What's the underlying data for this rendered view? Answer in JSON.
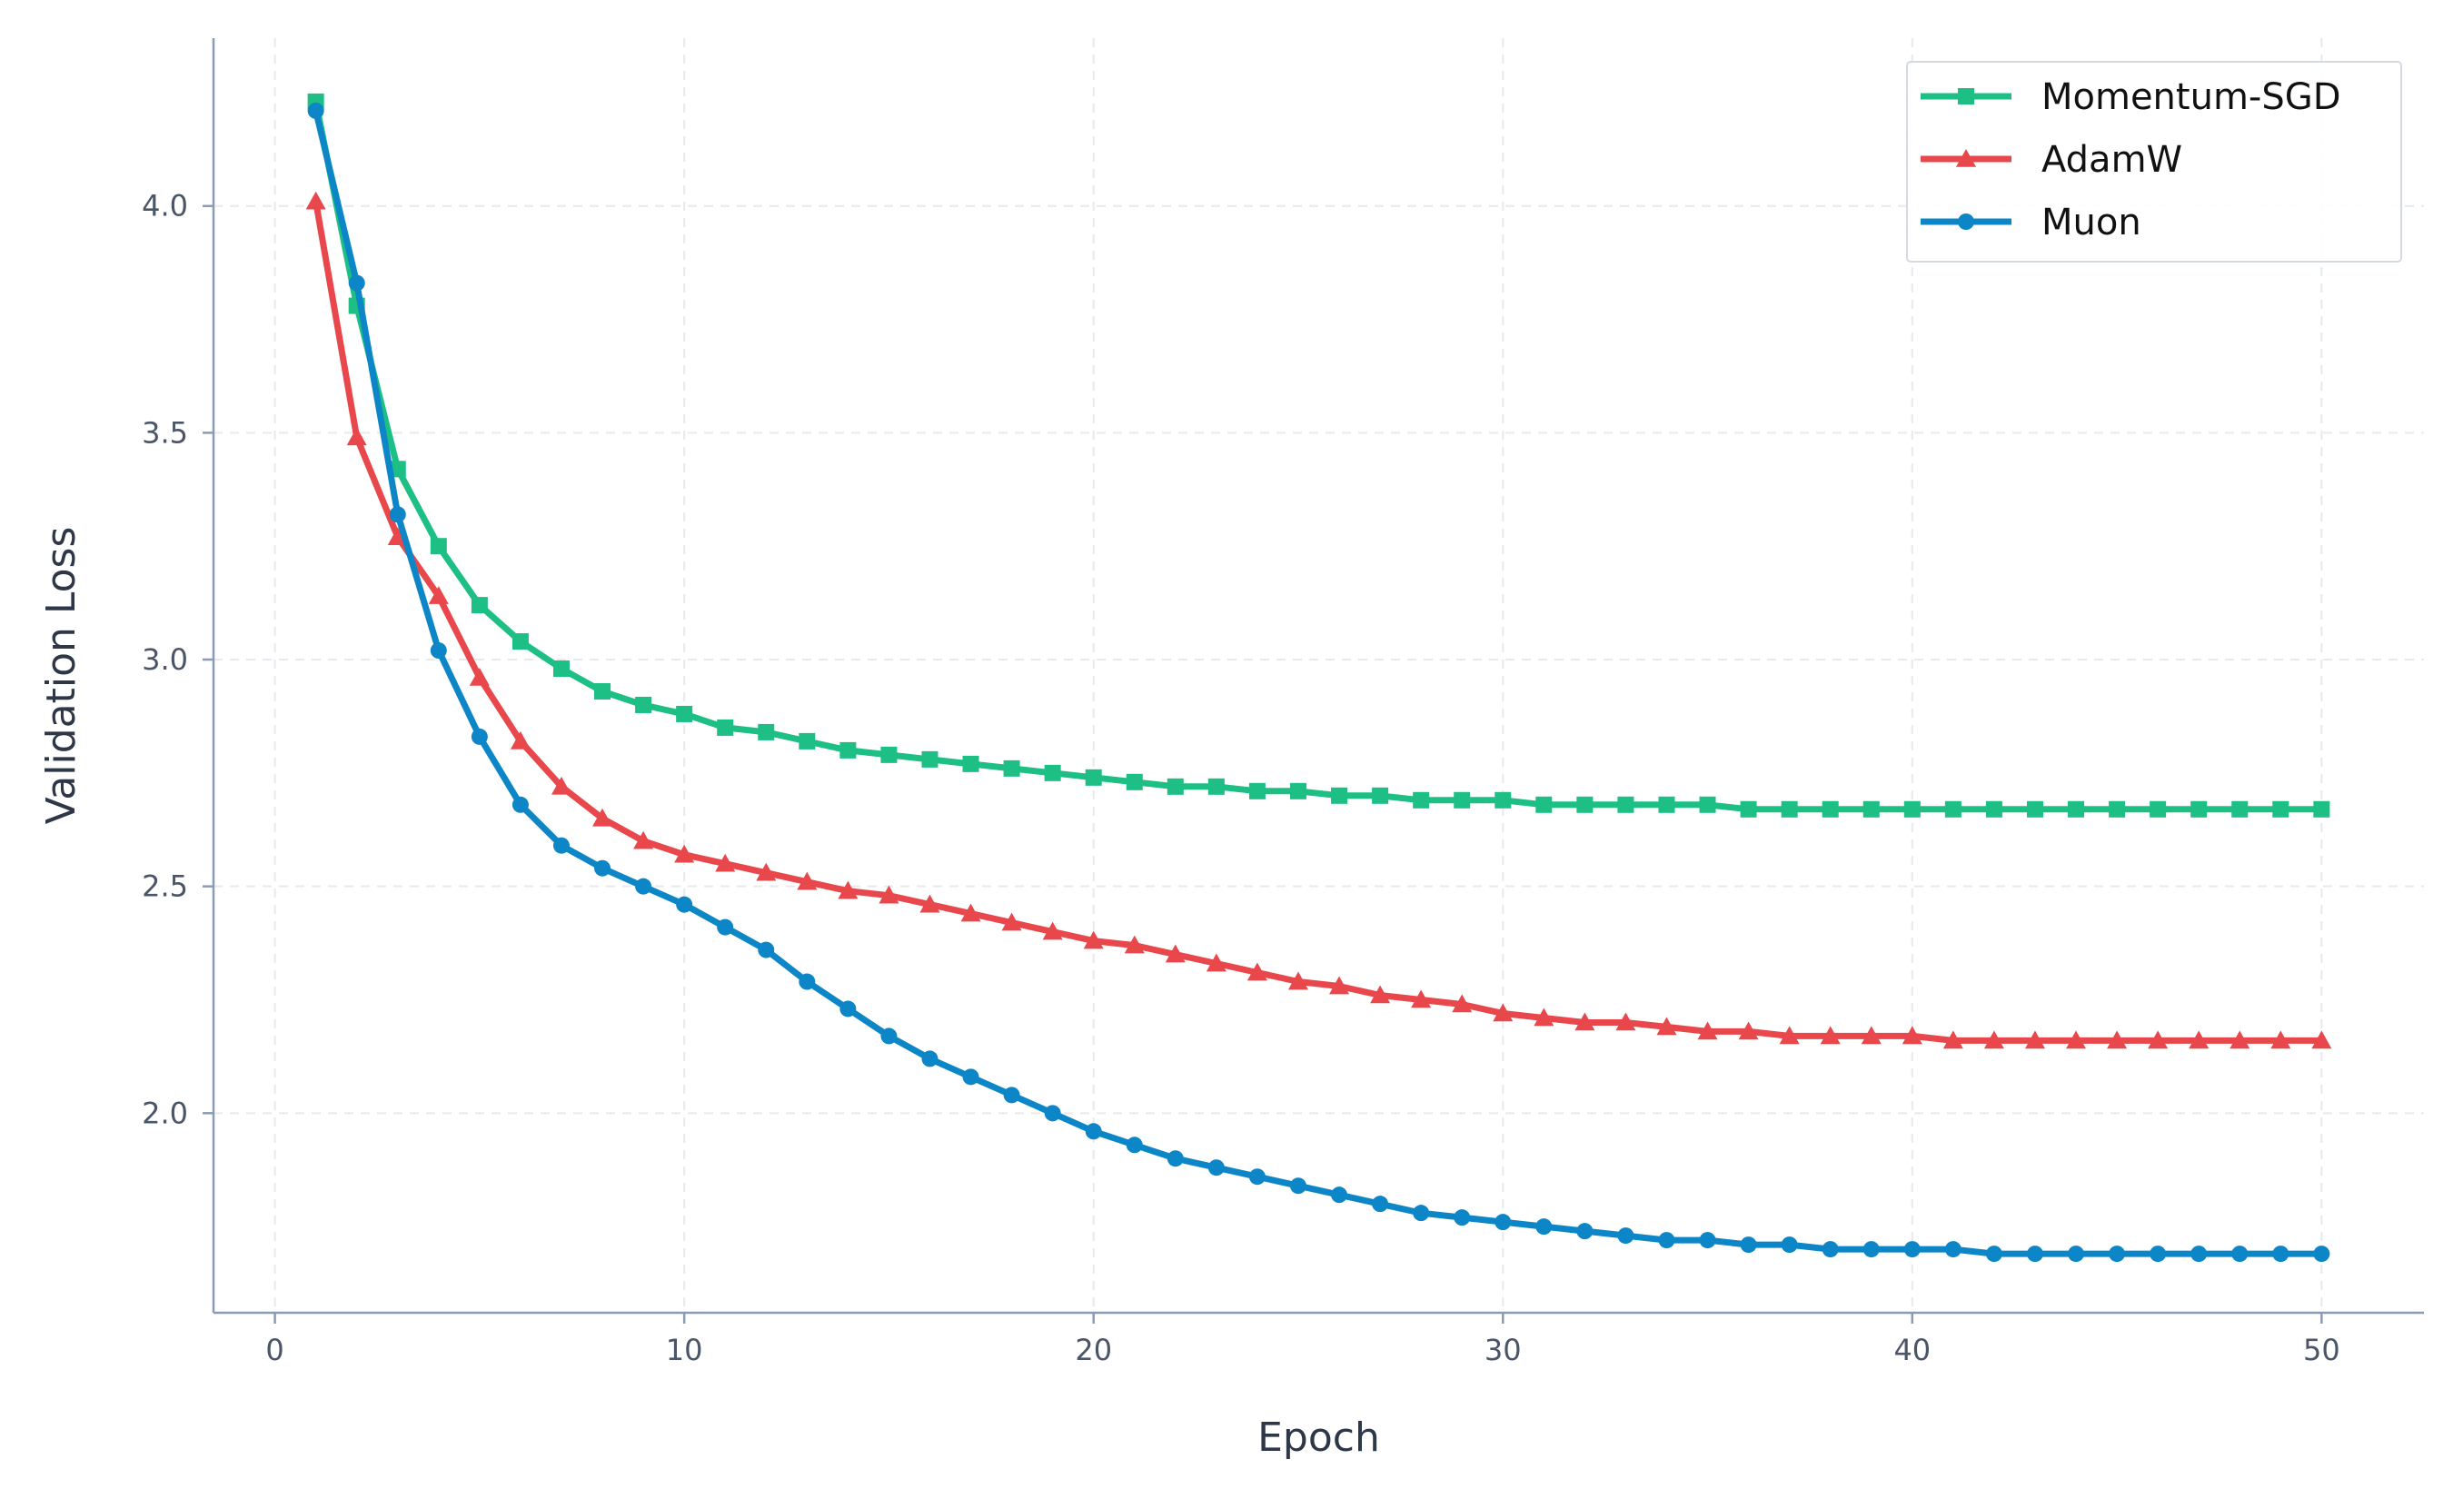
{
  "chart_data": {
    "type": "line",
    "title": "",
    "xlabel": "Epoch",
    "ylabel": "Validation Loss",
    "xlim": [
      -1.5,
      52.5
    ],
    "ylim": [
      1.56,
      4.37
    ],
    "xticks": [
      0,
      10,
      20,
      30,
      40,
      50
    ],
    "xtick_labels": [
      "0",
      "10",
      "20",
      "30",
      "40",
      "50"
    ],
    "yticks": [
      2.0,
      2.5,
      3.0,
      3.5,
      4.0
    ],
    "ytick_labels": [
      "2.0",
      "2.5",
      "3.0",
      "3.5",
      "4.0"
    ],
    "grid": true,
    "legend_position": "top-right",
    "x": [
      1,
      2,
      3,
      4,
      5,
      6,
      7,
      8,
      9,
      10,
      11,
      12,
      13,
      14,
      15,
      16,
      17,
      18,
      19,
      20,
      21,
      22,
      23,
      24,
      25,
      26,
      27,
      28,
      29,
      30,
      31,
      32,
      33,
      34,
      35,
      36,
      37,
      38,
      39,
      40,
      41,
      42,
      43,
      44,
      45,
      46,
      47,
      48,
      49,
      50
    ],
    "series": [
      {
        "name": "Momentum-SGD",
        "color": "#1dbf85",
        "marker": "square",
        "values": [
          4.23,
          3.78,
          3.42,
          3.25,
          3.12,
          3.04,
          2.98,
          2.93,
          2.9,
          2.88,
          2.85,
          2.84,
          2.82,
          2.8,
          2.79,
          2.78,
          2.77,
          2.76,
          2.75,
          2.74,
          2.73,
          2.72,
          2.72,
          2.71,
          2.71,
          2.7,
          2.7,
          2.69,
          2.69,
          2.69,
          2.68,
          2.68,
          2.68,
          2.68,
          2.68,
          2.67,
          2.67,
          2.67,
          2.67,
          2.67,
          2.67,
          2.67,
          2.67,
          2.67,
          2.67,
          2.67,
          2.67,
          2.67,
          2.67,
          2.67
        ]
      },
      {
        "name": "AdamW",
        "color": "#e8474c",
        "marker": "triangle",
        "values": [
          4.01,
          3.49,
          3.27,
          3.14,
          2.96,
          2.82,
          2.72,
          2.65,
          2.6,
          2.57,
          2.55,
          2.53,
          2.51,
          2.49,
          2.48,
          2.46,
          2.44,
          2.42,
          2.4,
          2.38,
          2.37,
          2.35,
          2.33,
          2.31,
          2.29,
          2.28,
          2.26,
          2.25,
          2.24,
          2.22,
          2.21,
          2.2,
          2.2,
          2.19,
          2.18,
          2.18,
          2.17,
          2.17,
          2.17,
          2.17,
          2.16,
          2.16,
          2.16,
          2.16,
          2.16,
          2.16,
          2.16,
          2.16,
          2.16,
          2.16
        ]
      },
      {
        "name": "Muon",
        "color": "#0c86c6",
        "marker": "circle",
        "values": [
          4.21,
          3.83,
          3.32,
          3.02,
          2.83,
          2.68,
          2.59,
          2.54,
          2.5,
          2.46,
          2.41,
          2.36,
          2.29,
          2.23,
          2.17,
          2.12,
          2.08,
          2.04,
          2.0,
          1.96,
          1.93,
          1.9,
          1.88,
          1.86,
          1.84,
          1.82,
          1.8,
          1.78,
          1.77,
          1.76,
          1.75,
          1.74,
          1.73,
          1.72,
          1.72,
          1.71,
          1.71,
          1.7,
          1.7,
          1.7,
          1.7,
          1.69,
          1.69,
          1.69,
          1.69,
          1.69,
          1.69,
          1.69,
          1.69,
          1.69
        ]
      }
    ]
  }
}
